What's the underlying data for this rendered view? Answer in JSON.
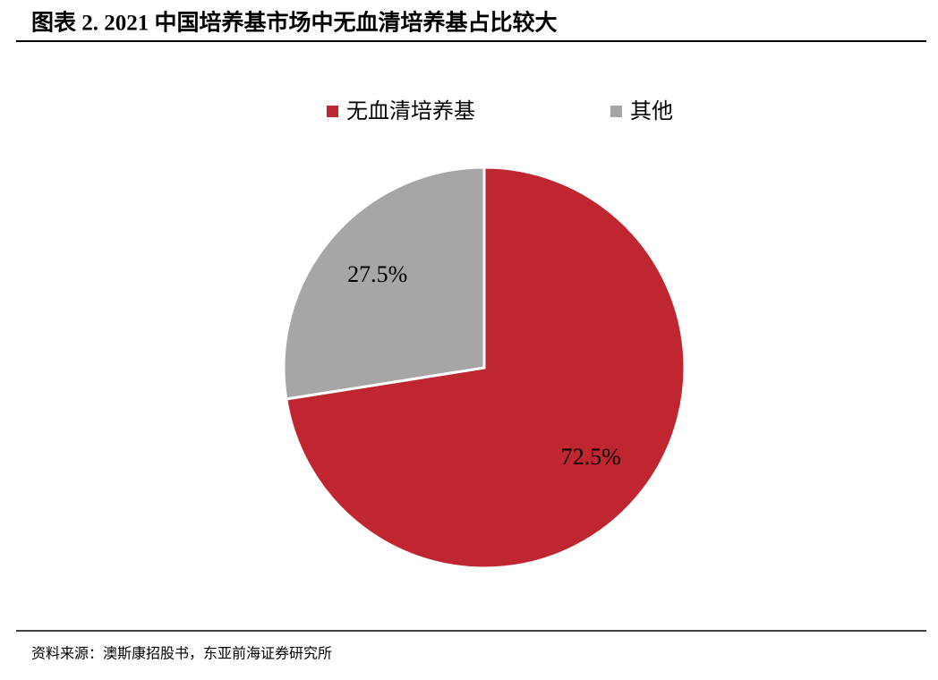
{
  "chart_data": {
    "type": "pie",
    "title": "图表 2.  2021 中国培养基市场中无血清培养基占比较大",
    "categories": [
      "无血清培养基",
      "其他"
    ],
    "values": [
      72.5,
      27.5
    ],
    "value_labels": [
      "72.5%",
      "27.5%"
    ],
    "colors": [
      "#c0262f",
      "#a6a6a6"
    ],
    "source": "资料来源：澳斯康招股书，东亚前海证券研究所"
  }
}
